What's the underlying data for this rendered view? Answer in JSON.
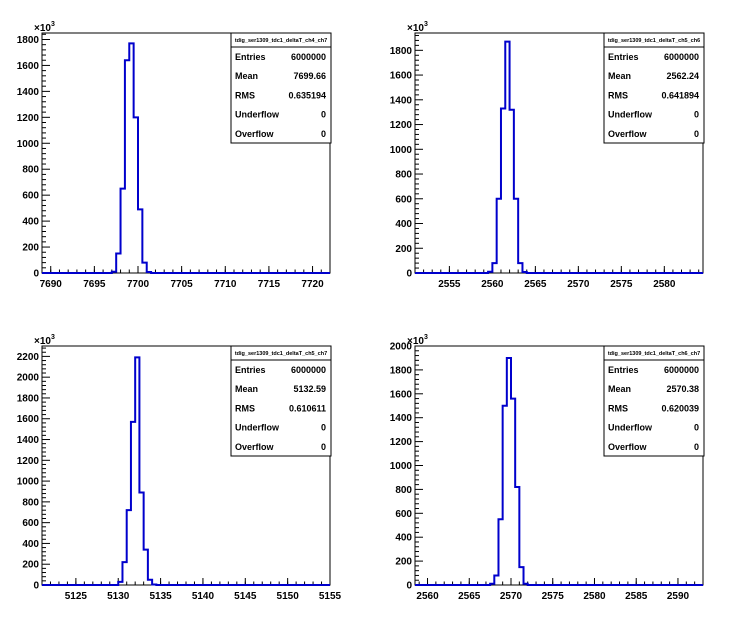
{
  "chart_data": [
    {
      "type": "bar",
      "title": "tdig_ser1309_tdc1_deltaT_ch4_ch7",
      "y_multiplier_label": "×10",
      "y_multiplier_exp": "3",
      "xlim": [
        7689,
        7722
      ],
      "ylim": [
        0,
        1850
      ],
      "x_ticks": [
        7690,
        7695,
        7700,
        7705,
        7710,
        7715,
        7720
      ],
      "y_ticks": [
        0,
        200,
        400,
        600,
        800,
        1000,
        1200,
        1400,
        1600,
        1800
      ],
      "bin_width": 0.5,
      "bins": [
        {
          "x": 7697.0,
          "value": 10
        },
        {
          "x": 7697.5,
          "value": 150
        },
        {
          "x": 7698.0,
          "value": 650
        },
        {
          "x": 7698.5,
          "value": 1640
        },
        {
          "x": 7699.0,
          "value": 1770
        },
        {
          "x": 7699.5,
          "value": 1200
        },
        {
          "x": 7700.0,
          "value": 490
        },
        {
          "x": 7700.5,
          "value": 80
        },
        {
          "x": 7701.0,
          "value": 8
        }
      ],
      "stats": [
        {
          "label": "Entries",
          "value": "6000000"
        },
        {
          "label": "Mean",
          "value": "7699.66"
        },
        {
          "label": "RMS",
          "value": "0.635194"
        },
        {
          "label": "Underflow",
          "value": "0"
        },
        {
          "label": "Overflow",
          "value": "0"
        }
      ]
    },
    {
      "type": "bar",
      "title": "tdig_ser1309_tdc1_deltaT_ch5_ch6",
      "y_multiplier_label": "×10",
      "y_multiplier_exp": "3",
      "xlim": [
        2551,
        2584.5
      ],
      "ylim": [
        0,
        1940
      ],
      "x_ticks": [
        2555,
        2560,
        2565,
        2570,
        2575,
        2580
      ],
      "y_ticks": [
        0,
        200,
        400,
        600,
        800,
        1000,
        1200,
        1400,
        1600,
        1800
      ],
      "bin_width": 0.5,
      "bins": [
        {
          "x": 2559.5,
          "value": 10
        },
        {
          "x": 2560.0,
          "value": 80
        },
        {
          "x": 2560.5,
          "value": 600
        },
        {
          "x": 2561.0,
          "value": 1330
        },
        {
          "x": 2561.5,
          "value": 1870
        },
        {
          "x": 2562.0,
          "value": 1320
        },
        {
          "x": 2562.5,
          "value": 600
        },
        {
          "x": 2563.0,
          "value": 80
        },
        {
          "x": 2563.5,
          "value": 8
        }
      ],
      "stats": [
        {
          "label": "Entries",
          "value": "6000000"
        },
        {
          "label": "Mean",
          "value": "2562.24"
        },
        {
          "label": "RMS",
          "value": "0.641894"
        },
        {
          "label": "Underflow",
          "value": "0"
        },
        {
          "label": "Overflow",
          "value": "0"
        }
      ]
    },
    {
      "type": "bar",
      "title": "tdig_ser1309_tdc1_deltaT_ch5_ch7",
      "y_multiplier_label": "×10",
      "y_multiplier_exp": "3",
      "xlim": [
        5121,
        5155
      ],
      "ylim": [
        0,
        2300
      ],
      "x_ticks": [
        5125,
        5130,
        5135,
        5140,
        5145,
        5150,
        5155
      ],
      "y_ticks": [
        0,
        200,
        400,
        600,
        800,
        1000,
        1200,
        1400,
        1600,
        1800,
        2000,
        2200
      ],
      "bin_width": 0.5,
      "bins": [
        {
          "x": 5130.0,
          "value": 30
        },
        {
          "x": 5130.5,
          "value": 220
        },
        {
          "x": 5131.0,
          "value": 720
        },
        {
          "x": 5131.5,
          "value": 1570
        },
        {
          "x": 5132.0,
          "value": 2190
        },
        {
          "x": 5132.5,
          "value": 890
        },
        {
          "x": 5133.0,
          "value": 340
        },
        {
          "x": 5133.5,
          "value": 50
        },
        {
          "x": 5134.0,
          "value": 5
        }
      ],
      "stats": [
        {
          "label": "Entries",
          "value": "6000000"
        },
        {
          "label": "Mean",
          "value": "5132.59"
        },
        {
          "label": "RMS",
          "value": "0.610611"
        },
        {
          "label": "Underflow",
          "value": "0"
        },
        {
          "label": "Overflow",
          "value": "0"
        }
      ]
    },
    {
      "type": "bar",
      "title": "tdig_ser1309_tdc1_deltaT_ch6_ch7",
      "y_multiplier_label": "×10",
      "y_multiplier_exp": "3",
      "xlim": [
        2558.5,
        2593
      ],
      "ylim": [
        0,
        2000
      ],
      "x_ticks": [
        2560,
        2565,
        2570,
        2575,
        2580,
        2585,
        2590
      ],
      "y_ticks": [
        0,
        200,
        400,
        600,
        800,
        1000,
        1200,
        1400,
        1600,
        1800,
        2000
      ],
      "bin_width": 0.5,
      "bins": [
        {
          "x": 2567.5,
          "value": 10
        },
        {
          "x": 2568.0,
          "value": 80
        },
        {
          "x": 2568.5,
          "value": 550
        },
        {
          "x": 2569.0,
          "value": 1500
        },
        {
          "x": 2569.5,
          "value": 1900
        },
        {
          "x": 2570.0,
          "value": 1560
        },
        {
          "x": 2570.5,
          "value": 820
        },
        {
          "x": 2571.0,
          "value": 150
        },
        {
          "x": 2571.5,
          "value": 10
        }
      ],
      "stats": [
        {
          "label": "Entries",
          "value": "6000000"
        },
        {
          "label": "Mean",
          "value": "2570.38"
        },
        {
          "label": "RMS",
          "value": "0.620039"
        },
        {
          "label": "Underflow",
          "value": "0"
        },
        {
          "label": "Overflow",
          "value": "0"
        }
      ]
    }
  ],
  "colors": {
    "histogram_line": "#0000cc",
    "axes": "#000000",
    "background": "#ffffff"
  }
}
